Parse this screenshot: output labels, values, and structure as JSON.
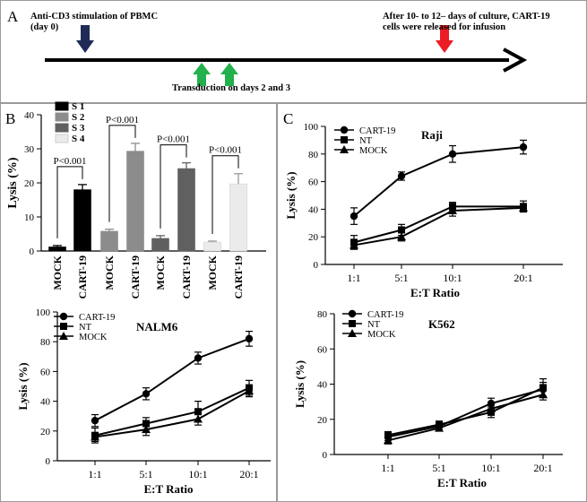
{
  "panels": {
    "A": {
      "letter": "A"
    },
    "B": {
      "letter": "B"
    },
    "C": {
      "letter": "C"
    }
  },
  "timeline": {
    "start_text_line1": "Anti-CD3 stimulation of  PBMC",
    "start_text_line2": "(day 0)",
    "end_text_line1": "After 10- to 12– days of culture, CART-19",
    "end_text_line2": "cells were released for infusion",
    "transduction_text": "Transduction on days 2 and 3",
    "colors": {
      "start": "#1f2a55",
      "transduction": "#22b14c",
      "end": "#ed1c24"
    }
  },
  "chart_data": [
    {
      "id": "bar",
      "type": "bar",
      "title": "",
      "ylabel": "Lysis (%)",
      "ylim": [
        0,
        40
      ],
      "yticks": [
        0,
        10,
        20,
        30,
        40
      ],
      "categories": [
        "MOCK",
        "CART-19",
        "MOCK",
        "CART-19",
        "MOCK",
        "CART-19",
        "MOCK",
        "CART-19"
      ],
      "values": [
        1.2,
        18,
        5.8,
        29.3,
        3.7,
        24.2,
        2.6,
        19.7
      ],
      "errors": [
        0.4,
        1.5,
        0.6,
        2.3,
        0.8,
        1.7,
        0.3,
        3.0
      ],
      "bar_colors": [
        "#000000",
        "#000000",
        "#8c8c8c",
        "#8c8c8c",
        "#606060",
        "#606060",
        "#ebebeb",
        "#ebebeb"
      ],
      "legend": [
        {
          "name": "S 1",
          "color": "#000000"
        },
        {
          "name": "S 2",
          "color": "#8c8c8c"
        },
        {
          "name": "S 3",
          "color": "#606060"
        },
        {
          "name": "S 4",
          "color": "#ebebeb"
        }
      ],
      "annotations": [
        "P<0.001",
        "P<0.001",
        "P<0.001",
        "P<0.001"
      ]
    },
    {
      "id": "nalm6",
      "type": "line",
      "title": "NALM6",
      "xlabel": "E:T Ratio",
      "ylabel": "Lysis (%)",
      "categories": [
        "1:1",
        "5:1",
        "10:1",
        "20:1"
      ],
      "ylim": [
        0,
        100
      ],
      "yticks": [
        0,
        20,
        40,
        60,
        80,
        100
      ],
      "series": [
        {
          "name": "CART-19",
          "marker": "circle",
          "values": [
            27,
            45,
            69,
            82
          ],
          "errors": [
            4,
            4,
            4,
            5
          ]
        },
        {
          "name": "NT",
          "marker": "square",
          "values": [
            17,
            25,
            33,
            49
          ],
          "errors": [
            5,
            4,
            7,
            5
          ]
        },
        {
          "name": "MOCK",
          "marker": "triangle",
          "values": [
            16,
            21,
            28,
            47
          ],
          "errors": [
            3,
            4,
            4,
            4
          ]
        }
      ]
    },
    {
      "id": "raji",
      "type": "line",
      "title": "Raji",
      "xlabel": "E:T Ratio",
      "ylabel": "Lysis (%)",
      "categories": [
        "1:1",
        "5:1",
        "10:1",
        "20:1"
      ],
      "ylim": [
        0,
        100
      ],
      "yticks": [
        0,
        20,
        40,
        60,
        80,
        100
      ],
      "series": [
        {
          "name": "CART-19",
          "marker": "circle",
          "values": [
            35,
            64,
            80,
            85
          ],
          "errors": [
            6,
            3,
            6,
            5
          ]
        },
        {
          "name": "NT",
          "marker": "square",
          "values": [
            16,
            25,
            42,
            42
          ],
          "errors": [
            5,
            4,
            3,
            4
          ]
        },
        {
          "name": "MOCK",
          "marker": "triangle",
          "values": [
            14,
            20,
            39,
            41
          ],
          "errors": [
            3,
            3,
            4,
            3
          ]
        }
      ]
    },
    {
      "id": "k562",
      "type": "line",
      "title": "K562",
      "xlabel": "E:T Ratio",
      "ylabel": "Lysis (%)",
      "categories": [
        "1:1",
        "5:1",
        "10:1",
        "20:1"
      ],
      "ylim": [
        0,
        80
      ],
      "yticks": [
        0,
        20,
        40,
        60,
        80
      ],
      "series": [
        {
          "name": "CART-19",
          "marker": "circle",
          "values": [
            10,
            16,
            29,
            37
          ],
          "errors": [
            2,
            2,
            3,
            4
          ]
        },
        {
          "name": "NT",
          "marker": "square",
          "values": [
            11,
            17,
            24,
            38
          ],
          "errors": [
            2,
            2,
            3,
            5
          ]
        },
        {
          "name": "MOCK",
          "marker": "triangle",
          "values": [
            8,
            15,
            26,
            34
          ],
          "errors": [
            2,
            1,
            2,
            3
          ]
        }
      ]
    }
  ]
}
